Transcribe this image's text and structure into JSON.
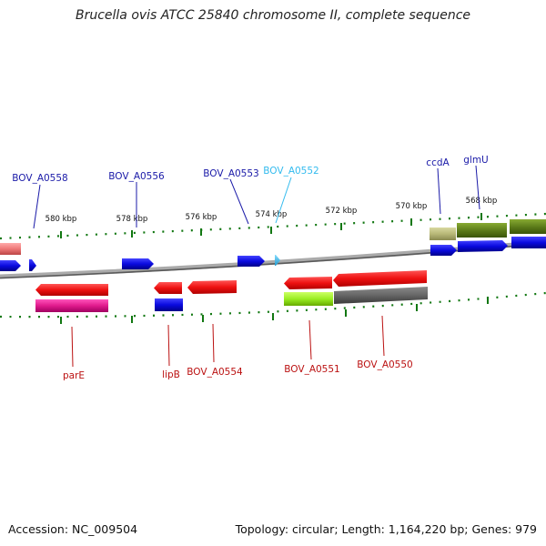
{
  "title": "Brucella ovis ATCC 25840 chromosome II, complete sequence",
  "footer": {
    "accession": "Accession: NC_009504",
    "topology": "Topology: circular; Length: 1,164,220 bp; Genes: 979"
  },
  "colors": {
    "forward_gene": "#0a0adf",
    "reverse_gene": "#ee1111",
    "highlight_gene": "#33bbee",
    "top_label": "#1a1aa8",
    "bottom_label": "#bb1111",
    "tick": "#117711",
    "backbone": "#808080"
  },
  "ticks": [
    {
      "label": "580 kbp"
    },
    {
      "label": "578 kbp"
    },
    {
      "label": "576 kbp"
    },
    {
      "label": "574 kbp"
    },
    {
      "label": "572 kbp"
    },
    {
      "label": "570 kbp"
    },
    {
      "label": "568 kbp"
    }
  ],
  "top_labels": [
    {
      "text": "BOV_A0558",
      "color": "#1a1aa8"
    },
    {
      "text": "BOV_A0556",
      "color": "#1a1aa8"
    },
    {
      "text": "BOV_A0553",
      "color": "#1a1aa8"
    },
    {
      "text": "BOV_A0552",
      "color": "#33bbee"
    },
    {
      "text": "ccdA",
      "color": "#1a1aa8"
    },
    {
      "text": "glmU",
      "color": "#1a1aa8"
    }
  ],
  "bottom_labels": [
    {
      "text": "parE"
    },
    {
      "text": "lipB"
    },
    {
      "text": "BOV_A0554"
    },
    {
      "text": "BOV_A0551"
    },
    {
      "text": "BOV_A0550"
    }
  ]
}
